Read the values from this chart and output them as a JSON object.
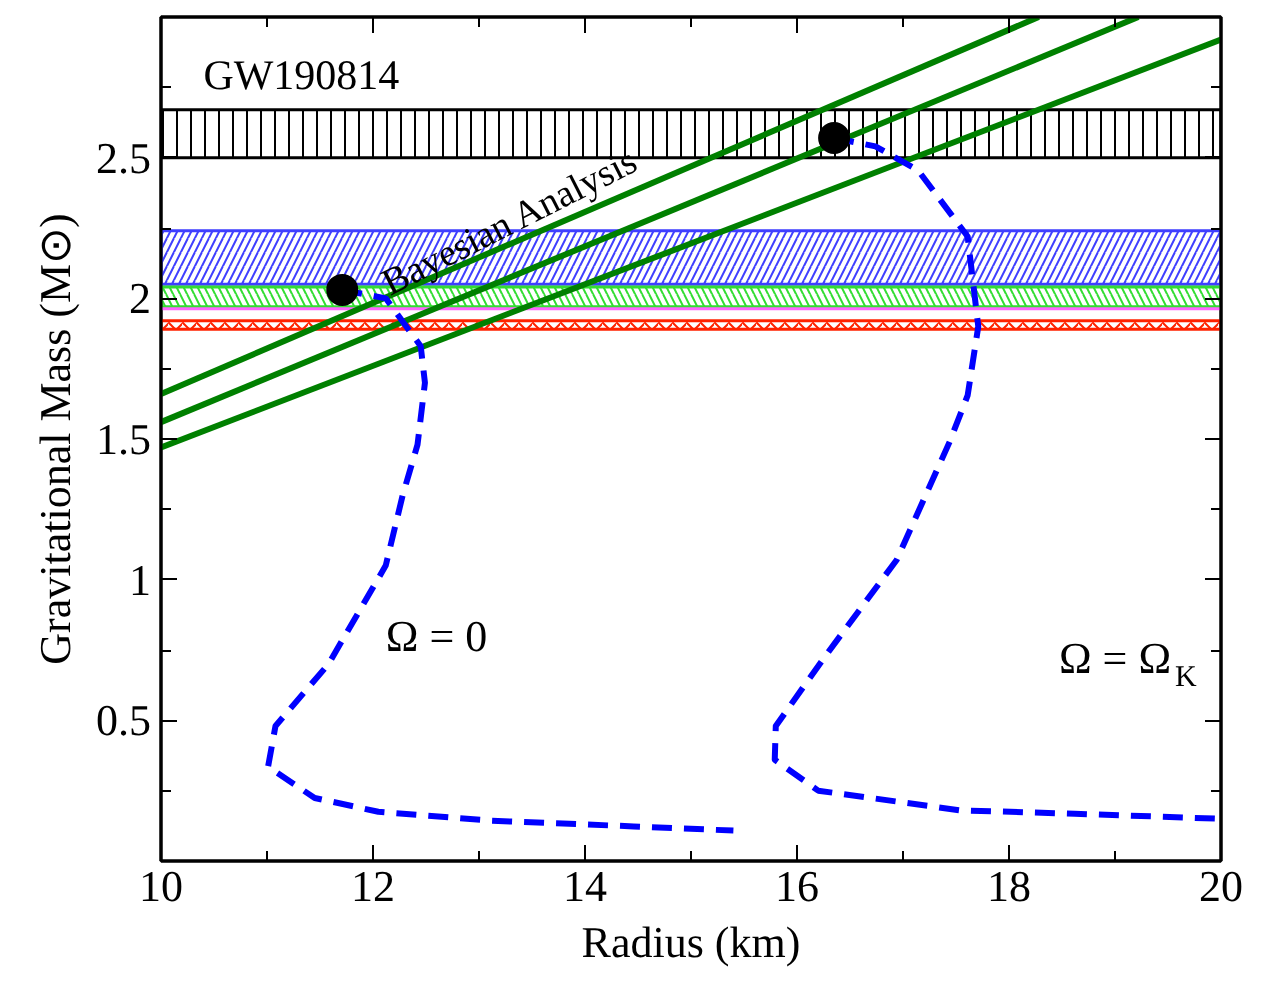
{
  "chart_data": {
    "type": "line",
    "xlabel": "Radius (km)",
    "ylabel": "Gravitational Mass (M⊙)",
    "xlim": [
      10,
      20
    ],
    "ylim": [
      0,
      3
    ],
    "xticks": [
      10,
      {
        "value": 11,
        "label": null
      },
      12,
      {
        "value": 13,
        "label": null
      },
      14,
      {
        "value": 15,
        "label": null
      },
      16,
      {
        "value": 17,
        "label": null
      },
      18,
      {
        "value": 19,
        "label": null
      },
      20
    ],
    "yticks": [
      {
        "value": 0.25,
        "label": null
      },
      0.5,
      {
        "value": 0.75,
        "label": null
      },
      1,
      {
        "value": 1.25,
        "label": null
      },
      1.5,
      {
        "value": 1.75,
        "label": null
      },
      2,
      {
        "value": 2.25,
        "label": null
      },
      2.5,
      {
        "value": 2.75,
        "label": null
      }
    ],
    "grid": false,
    "series": [
      {
        "color": "#008000",
        "x": [
          10,
          18.28
        ],
        "values": [
          1.66,
          3.0
        ]
      },
      {
        "color": "#008000",
        "x": [
          10,
          19.22
        ],
        "values": [
          1.56,
          3.0
        ]
      },
      {
        "color": "#008000",
        "x": [
          10,
          20
        ],
        "values": [
          1.47,
          2.92
        ]
      },
      {
        "color": "#0000ff",
        "line_style": "dashed",
        "x": [
          11.71,
          12.12,
          12.45,
          12.49,
          12.42,
          12.28,
          12.12,
          11.58,
          11.08,
          11.01,
          11.45,
          12.05,
          13.12,
          14.46,
          15.4
        ],
        "values": [
          2.03,
          2.0,
          1.83,
          1.7,
          1.48,
          1.3,
          1.05,
          0.7,
          0.48,
          0.335,
          0.224,
          0.175,
          0.143,
          0.123,
          0.108
        ]
      },
      {
        "color": "#0000ff",
        "line_style": "dashed",
        "x": [
          16.35,
          16.74,
          17.14,
          17.61,
          17.71,
          17.61,
          17.44,
          16.94,
          16.27,
          15.8,
          15.79,
          16.2,
          17.54,
          18.62,
          20.0
        ],
        "values": [
          2.57,
          2.54,
          2.456,
          2.22,
          1.9,
          1.655,
          1.49,
          1.07,
          0.73,
          0.48,
          0.36,
          0.25,
          0.18,
          0.168,
          0.15
        ]
      },
      {
        "type": "scatter",
        "color": "#000000",
        "marker": "circle",
        "x": [
          11.71,
          16.35
        ],
        "values": [
          2.03,
          2.57
        ]
      }
    ],
    "bands": [
      {
        "axis": "y",
        "from": 2.5,
        "to": 2.67,
        "label": "GW190814",
        "color": "#000000"
      },
      {
        "axis": "y",
        "from": 2.05,
        "to": 2.24,
        "color": "#3f3fff"
      },
      {
        "axis": "y",
        "from": 1.97,
        "to": 2.04,
        "color": "#33dd33"
      },
      {
        "axis": "y",
        "from": 1.89,
        "to": 1.92,
        "color": "#ff2200"
      }
    ],
    "ref_lines": [
      {
        "axis": "y",
        "value": 1.963,
        "color": "#ff66ff"
      }
    ],
    "annotations": [
      {
        "text": "Bayesian Analysis",
        "x": 13.3,
        "y": 2.27
      },
      "Ω = 0",
      "Ω = Ω$_{K}$"
    ]
  }
}
